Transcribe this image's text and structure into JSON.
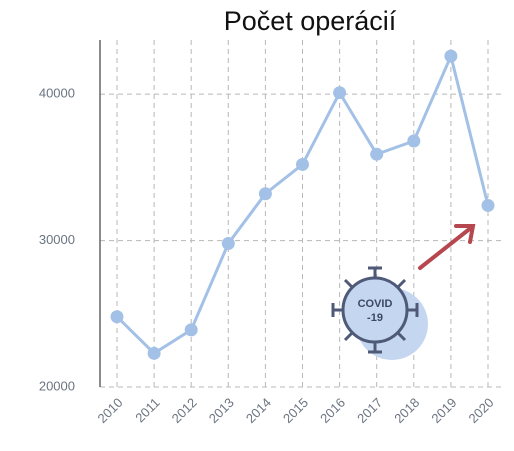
{
  "chart_data": {
    "type": "line",
    "title": "Počet operácií",
    "categories": [
      "2010",
      "2011",
      "2012",
      "2013",
      "2014",
      "2015",
      "2016",
      "2017",
      "2018",
      "2019",
      "2020"
    ],
    "series": [
      {
        "name": null,
        "color": "#a3c1e6",
        "values": [
          24800,
          22300,
          23900,
          29800,
          33200,
          35200,
          40100,
          35900,
          36800,
          42600,
          32400
        ]
      }
    ],
    "ylim": [
      20000,
      43700
    ],
    "yticks": [
      20000,
      30000,
      40000
    ],
    "grid": true,
    "annotations": [
      "COVID",
      "-19"
    ]
  }
}
